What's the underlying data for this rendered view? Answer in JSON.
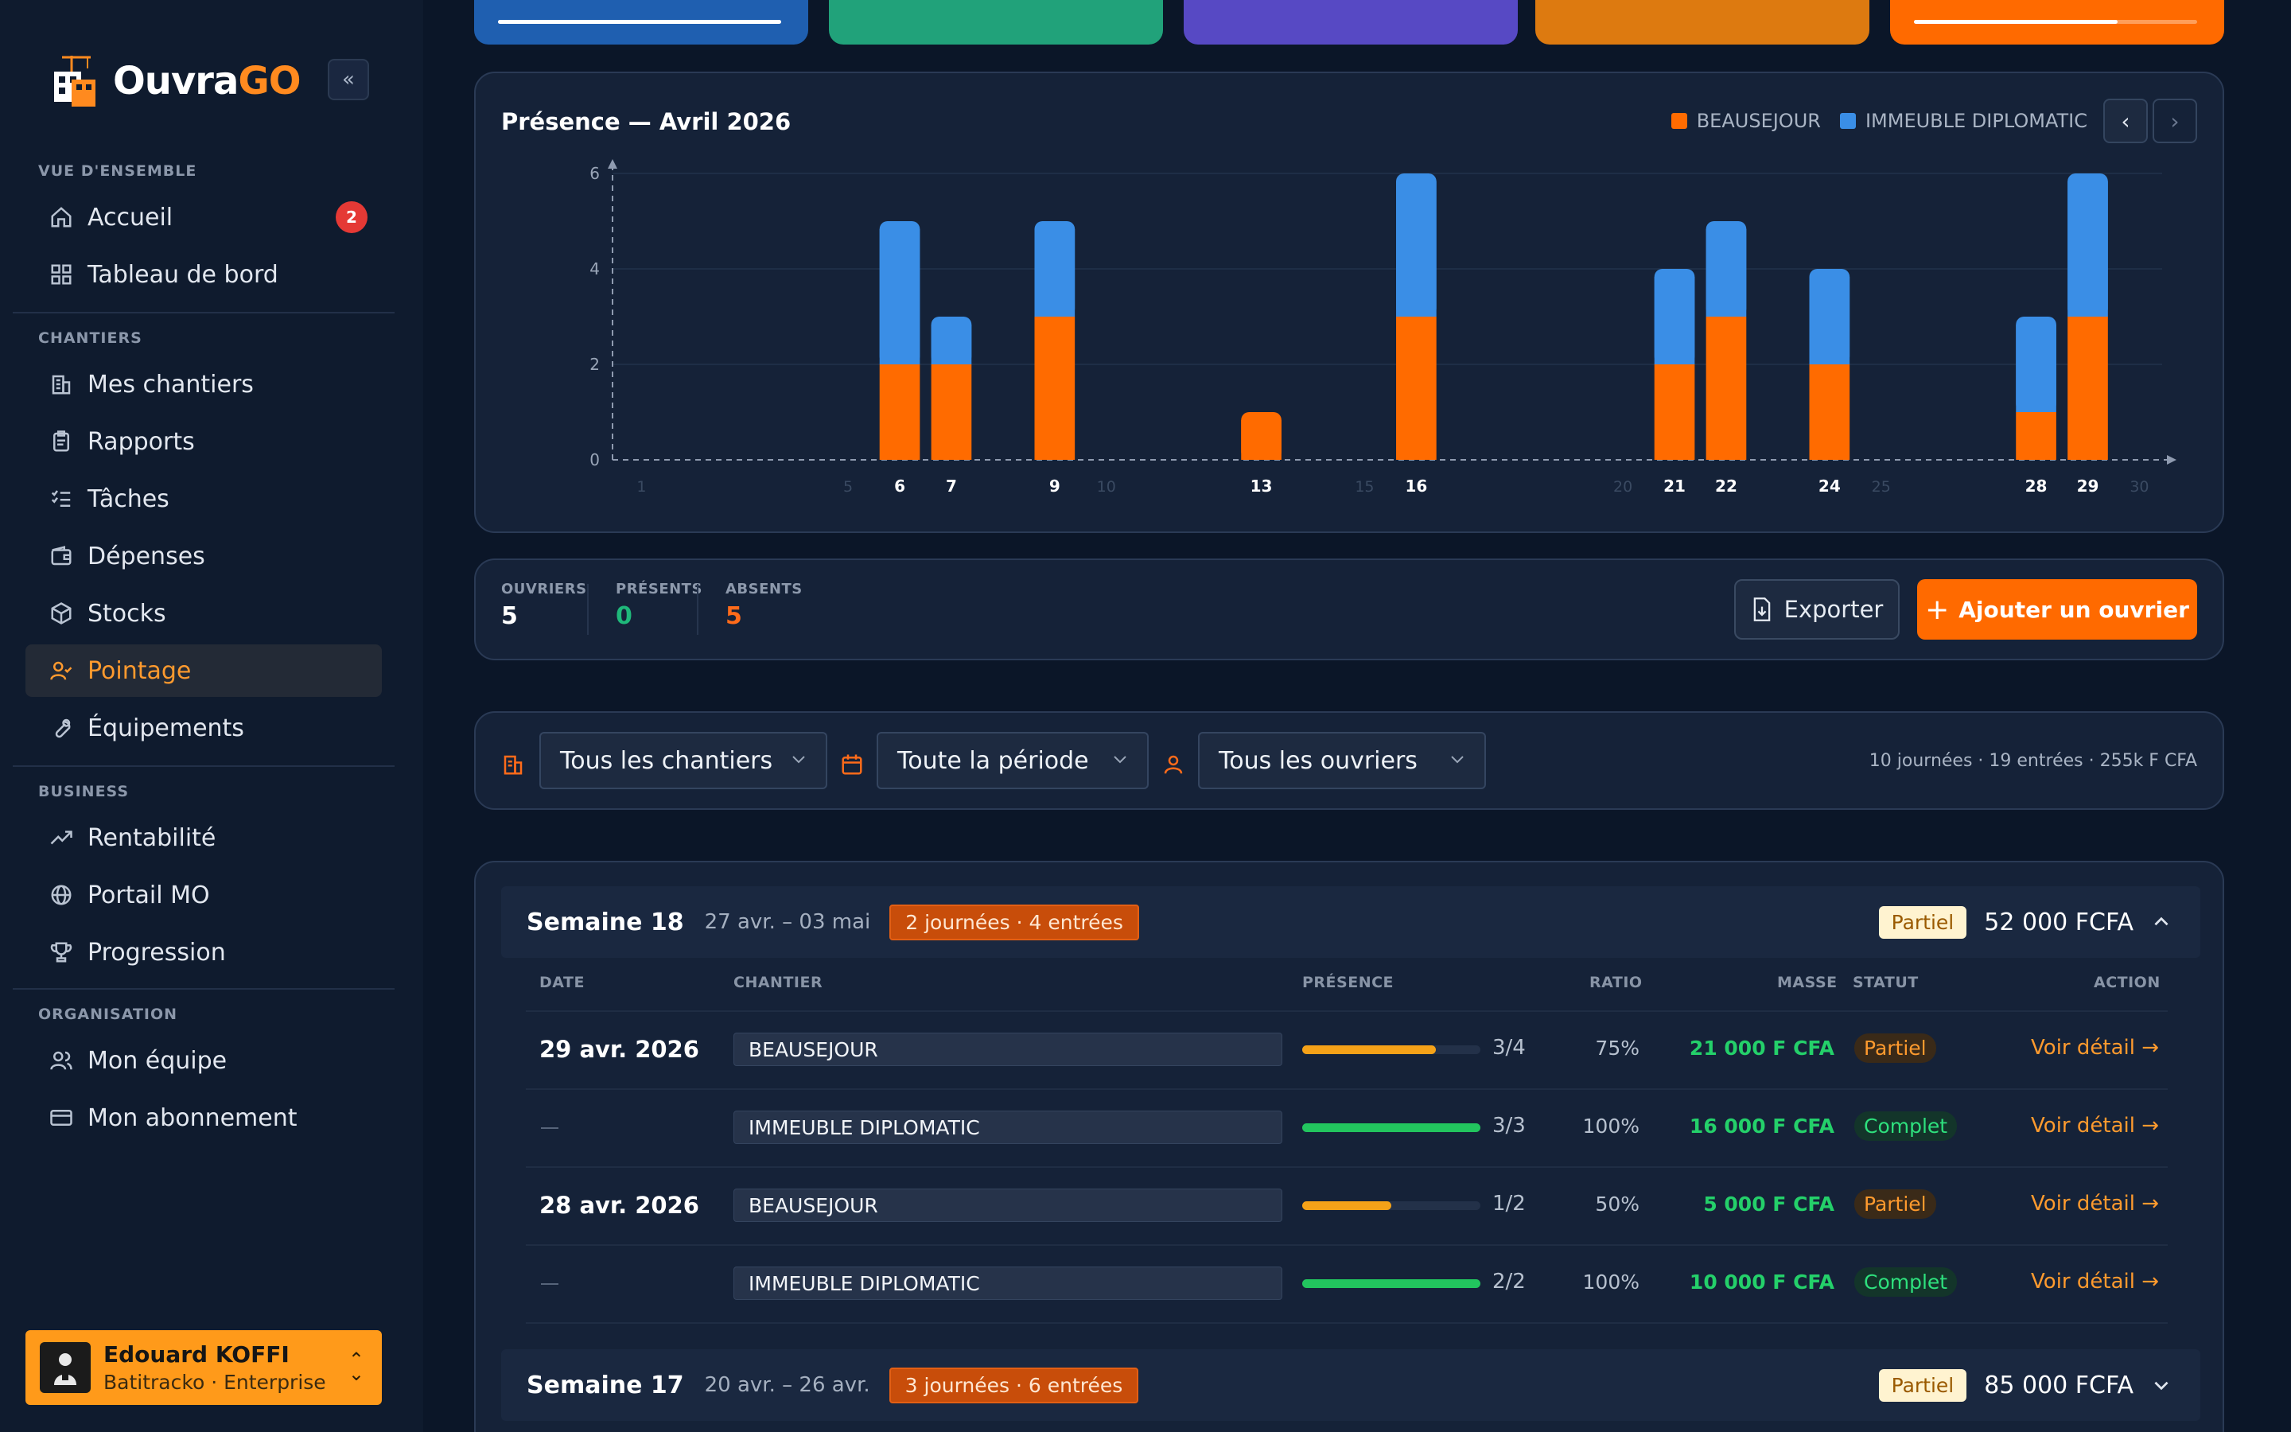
{
  "brand": {
    "name_main": "Ouvra",
    "name_accent": "GO"
  },
  "sidebar": {
    "sections": [
      {
        "title": "VUE D'ENSEMBLE",
        "items": [
          {
            "label": "Accueil",
            "icon": "home-icon",
            "badge": "2"
          },
          {
            "label": "Tableau de bord",
            "icon": "dashboard-icon"
          }
        ]
      },
      {
        "title": "CHANTIERS",
        "items": [
          {
            "label": "Mes chantiers",
            "icon": "building-icon"
          },
          {
            "label": "Rapports",
            "icon": "clipboard-icon"
          },
          {
            "label": "Tâches",
            "icon": "checklist-icon"
          },
          {
            "label": "Dépenses",
            "icon": "wallet-icon"
          },
          {
            "label": "Stocks",
            "icon": "box-icon"
          },
          {
            "label": "Pointage",
            "icon": "user-check-icon",
            "active": true
          },
          {
            "label": "Équipements",
            "icon": "wrench-icon"
          }
        ]
      },
      {
        "title": "BUSINESS",
        "items": [
          {
            "label": "Rentabilité",
            "icon": "trending-up-icon"
          },
          {
            "label": "Portail MO",
            "icon": "globe-icon"
          },
          {
            "label": "Progression",
            "icon": "trophy-icon"
          }
        ]
      },
      {
        "title": "ORGANISATION",
        "items": [
          {
            "label": "Mon équipe",
            "icon": "users-icon"
          },
          {
            "label": "Mon abonnement",
            "icon": "credit-card-icon"
          }
        ]
      }
    ],
    "user": {
      "name": "Edouard KOFFI",
      "subtitle": "Batitracko · Enterprise"
    }
  },
  "kpi_cards": [
    {
      "color": "#1f5fb0",
      "progress": 1.0
    },
    {
      "color": "#21a27a"
    },
    {
      "color": "#5749c4"
    },
    {
      "color": "#dd7a10"
    },
    {
      "color": "#ff6a00",
      "progress": 0.72
    }
  ],
  "presence_chart": {
    "title": "Présence — Avril 2026",
    "legend": [
      "BEAUSEJOUR",
      "IMMEUBLE DIPLOMATIC"
    ]
  },
  "chart_data": {
    "type": "bar",
    "stacked": true,
    "title": "Présence — Avril 2026",
    "xlabel": "",
    "ylabel": "",
    "ylim": [
      0,
      6
    ],
    "yticks": [
      0,
      2,
      4,
      6
    ],
    "x_days": 30,
    "x_ticks_dim": [
      "1",
      "5",
      "10",
      "15",
      "20",
      "25",
      "30"
    ],
    "categories": [
      "6",
      "7",
      "9",
      "13",
      "16",
      "21",
      "22",
      "24",
      "28",
      "29"
    ],
    "series": [
      {
        "name": "BEAUSEJOUR",
        "color": "#ff6b00",
        "values": [
          2,
          2,
          3,
          1,
          3,
          2,
          3,
          2,
          1,
          3
        ]
      },
      {
        "name": "IMMEUBLE DIPLOMATIC",
        "color": "#3a8ee6",
        "values": [
          3,
          1,
          2,
          0,
          3,
          2,
          2,
          2,
          2,
          3
        ]
      }
    ],
    "grid": true,
    "legend_position": "top-right"
  },
  "stats": [
    {
      "label": "OUVRIERS",
      "value": "5",
      "color": "#ffffff"
    },
    {
      "label": "PRÉSENTS",
      "value": "0",
      "color": "#1fb87a"
    },
    {
      "label": "ABSENTS",
      "value": "5",
      "color": "#ff6b1a"
    }
  ],
  "actions": {
    "export": "Exporter",
    "add_worker": "Ajouter un ouvrier"
  },
  "filters": {
    "chantier": "Tous les chantiers",
    "periode": "Toute la période",
    "ouvrier": "Tous les ouvriers",
    "summary": "10 journées · 19 entrées · 255k F CFA"
  },
  "table": {
    "headers": {
      "date": "DATE",
      "chantier": "CHANTIER",
      "presence": "PRÉSENCE",
      "ratio": "RATIO",
      "masse": "MASSE",
      "statut": "STATUT",
      "action": "ACTION"
    },
    "weeks": [
      {
        "title": "Semaine 18",
        "range": "27 avr. – 03 mai",
        "summary": "2 journées · 4 entrées",
        "status": "Partiel",
        "amount": "52 000 FCFA",
        "expanded": true
      },
      {
        "title": "Semaine 17",
        "range": "20 avr. – 26 avr.",
        "summary": "3 journées · 6 entrées",
        "status": "Partiel",
        "amount": "85 000 FCFA",
        "expanded": false
      }
    ],
    "rows": [
      {
        "date": "29 avr. 2026",
        "chantier": "BEAUSEJOUR",
        "presence": 0.75,
        "fraction": "3/4",
        "ratio": "75%",
        "masse": "21 000 F CFA",
        "statut": "Partiel",
        "action": "Voir détail →"
      },
      {
        "date": "",
        "chantier": "IMMEUBLE DIPLOMATIC",
        "presence": 1.0,
        "fraction": "3/3",
        "ratio": "100%",
        "masse": "16 000 F CFA",
        "statut": "Complet",
        "action": "Voir détail →"
      },
      {
        "date": "28 avr. 2026",
        "chantier": "BEAUSEJOUR",
        "presence": 0.5,
        "fraction": "1/2",
        "ratio": "50%",
        "masse": "5 000 F CFA",
        "statut": "Partiel",
        "action": "Voir détail →"
      },
      {
        "date": "",
        "chantier": "IMMEUBLE DIPLOMATIC",
        "presence": 1.0,
        "fraction": "2/2",
        "ratio": "100%",
        "masse": "10 000 F CFA",
        "statut": "Complet",
        "action": "Voir détail →"
      }
    ]
  }
}
